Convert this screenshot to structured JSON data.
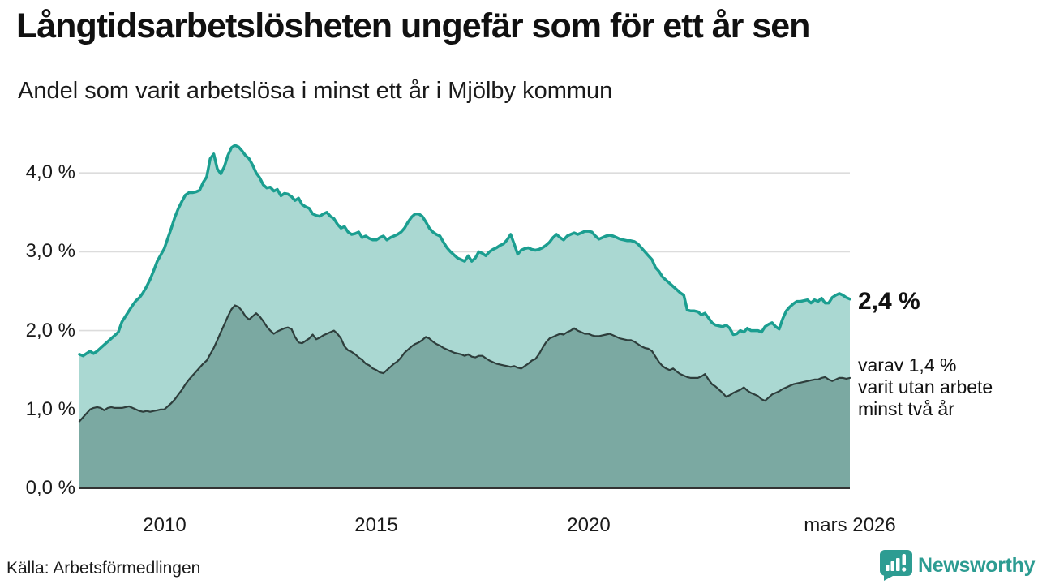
{
  "header": {
    "title": "Långtidsarbetslösheten ungefär som för ett år sen",
    "subtitle": "Andel som varit arbetslösa i minst ett år i Mjölby kommun"
  },
  "annotations": {
    "latest_value": "2,4 %",
    "detail_lines": [
      "varav 1,4 %",
      "varit utan arbete",
      "minst två år"
    ]
  },
  "source": "Källa: Arbetsförmedlingen",
  "logo": {
    "text": "Newsworthy"
  },
  "colors": {
    "line_one_year": "#1b9e90",
    "fill_one_year": "#aad8d2",
    "line_two_years": "#2e3e3c",
    "fill_two_years": "#7ba9a2",
    "gridline": "#dcdcdc",
    "baseline": "#333333",
    "logo_teal": "#2d9c92",
    "text": "#111111"
  },
  "chart_data": {
    "type": "area",
    "frequency": "monthly",
    "x_start": "2008-01",
    "x_end": "2026-03",
    "title": "Långtidsarbetslösheten ungefär som för ett år sen",
    "subtitle": "Andel som varit arbetslösa i minst ett år i Mjölby kommun",
    "ylim": [
      0,
      4.5
    ],
    "grid": "horizontal",
    "y_axis": {
      "values": [
        0,
        1,
        2,
        3,
        4
      ],
      "labels": [
        "0,0 %",
        "1,0 %",
        "2,0 %",
        "3,0 %",
        "4,0 %"
      ]
    },
    "x_axis": {
      "labels": [
        "2010",
        "2015",
        "2020",
        "mars 2026"
      ],
      "month_indices": [
        24,
        84,
        144,
        218
      ]
    },
    "series": [
      {
        "name": "Arbetslösa minst ett år",
        "end_label": "2,4 %",
        "values": [
          1.7,
          1.68,
          1.71,
          1.74,
          1.71,
          1.74,
          1.78,
          1.82,
          1.86,
          1.9,
          1.94,
          1.98,
          2.11,
          2.18,
          2.25,
          2.32,
          2.38,
          2.42,
          2.48,
          2.56,
          2.65,
          2.76,
          2.88,
          2.96,
          3.04,
          3.17,
          3.3,
          3.44,
          3.55,
          3.64,
          3.72,
          3.75,
          3.75,
          3.76,
          3.78,
          3.88,
          3.95,
          4.18,
          4.24,
          4.05,
          3.99,
          4.08,
          4.22,
          4.32,
          4.35,
          4.33,
          4.28,
          4.22,
          4.18,
          4.1,
          4.0,
          3.94,
          3.85,
          3.81,
          3.82,
          3.77,
          3.79,
          3.71,
          3.74,
          3.73,
          3.7,
          3.65,
          3.68,
          3.6,
          3.57,
          3.55,
          3.48,
          3.46,
          3.45,
          3.48,
          3.5,
          3.45,
          3.42,
          3.35,
          3.3,
          3.32,
          3.25,
          3.22,
          3.23,
          3.25,
          3.18,
          3.2,
          3.17,
          3.15,
          3.15,
          3.18,
          3.2,
          3.15,
          3.18,
          3.2,
          3.22,
          3.25,
          3.3,
          3.38,
          3.44,
          3.48,
          3.48,
          3.45,
          3.38,
          3.3,
          3.25,
          3.22,
          3.2,
          3.12,
          3.05,
          3.0,
          2.96,
          2.92,
          2.9,
          2.88,
          2.95,
          2.88,
          2.92,
          3.0,
          2.98,
          2.95,
          3.0,
          3.03,
          3.05,
          3.08,
          3.1,
          3.15,
          3.22,
          3.1,
          2.97,
          3.02,
          3.04,
          3.05,
          3.03,
          3.02,
          3.03,
          3.05,
          3.08,
          3.12,
          3.18,
          3.22,
          3.18,
          3.15,
          3.2,
          3.22,
          3.24,
          3.22,
          3.24,
          3.26,
          3.26,
          3.25,
          3.2,
          3.16,
          3.18,
          3.2,
          3.21,
          3.2,
          3.18,
          3.16,
          3.15,
          3.14,
          3.14,
          3.13,
          3.1,
          3.05,
          3.0,
          2.95,
          2.9,
          2.8,
          2.75,
          2.68,
          2.64,
          2.6,
          2.56,
          2.52,
          2.48,
          2.45,
          2.26,
          2.25,
          2.25,
          2.24,
          2.2,
          2.22,
          2.16,
          2.1,
          2.07,
          2.06,
          2.05,
          2.07,
          2.03,
          1.95,
          1.96,
          2.0,
          1.98,
          2.03,
          2.0,
          2.0,
          2.0,
          1.98,
          2.05,
          2.08,
          2.1,
          2.05,
          2.02,
          2.15,
          2.25,
          2.3,
          2.34,
          2.37,
          2.37,
          2.38,
          2.39,
          2.35,
          2.39,
          2.37,
          2.41,
          2.35,
          2.35,
          2.42,
          2.45,
          2.47,
          2.45,
          2.42,
          2.4
        ]
      },
      {
        "name": "Arbetslösa minst två år",
        "end_label": "1,4 %",
        "values": [
          0.85,
          0.9,
          0.95,
          1.0,
          1.02,
          1.03,
          1.02,
          0.99,
          1.02,
          1.03,
          1.02,
          1.02,
          1.02,
          1.03,
          1.04,
          1.02,
          1.0,
          0.98,
          0.97,
          0.98,
          0.97,
          0.98,
          0.99,
          1.0,
          1.0,
          1.04,
          1.08,
          1.13,
          1.19,
          1.25,
          1.32,
          1.38,
          1.43,
          1.48,
          1.53,
          1.58,
          1.62,
          1.7,
          1.78,
          1.88,
          1.98,
          2.08,
          2.18,
          2.27,
          2.32,
          2.3,
          2.25,
          2.18,
          2.14,
          2.18,
          2.22,
          2.18,
          2.12,
          2.05,
          2.0,
          1.96,
          1.99,
          2.01,
          2.03,
          2.04,
          2.02,
          1.92,
          1.85,
          1.84,
          1.87,
          1.9,
          1.95,
          1.89,
          1.91,
          1.94,
          1.96,
          1.98,
          2.0,
          1.96,
          1.9,
          1.8,
          1.75,
          1.73,
          1.7,
          1.66,
          1.63,
          1.58,
          1.56,
          1.52,
          1.5,
          1.47,
          1.46,
          1.5,
          1.54,
          1.58,
          1.61,
          1.66,
          1.72,
          1.76,
          1.8,
          1.83,
          1.85,
          1.88,
          1.92,
          1.9,
          1.86,
          1.83,
          1.81,
          1.78,
          1.76,
          1.74,
          1.72,
          1.71,
          1.7,
          1.68,
          1.7,
          1.67,
          1.66,
          1.68,
          1.68,
          1.65,
          1.62,
          1.6,
          1.58,
          1.57,
          1.56,
          1.55,
          1.54,
          1.55,
          1.53,
          1.52,
          1.55,
          1.58,
          1.62,
          1.64,
          1.7,
          1.78,
          1.85,
          1.9,
          1.92,
          1.94,
          1.96,
          1.95,
          1.98,
          2.0,
          2.03,
          2.0,
          1.98,
          1.96,
          1.96,
          1.94,
          1.93,
          1.93,
          1.94,
          1.95,
          1.96,
          1.94,
          1.92,
          1.9,
          1.89,
          1.88,
          1.88,
          1.86,
          1.83,
          1.8,
          1.78,
          1.77,
          1.74,
          1.67,
          1.6,
          1.55,
          1.52,
          1.5,
          1.52,
          1.48,
          1.45,
          1.43,
          1.41,
          1.4,
          1.4,
          1.4,
          1.42,
          1.45,
          1.38,
          1.32,
          1.29,
          1.25,
          1.21,
          1.16,
          1.18,
          1.21,
          1.23,
          1.25,
          1.28,
          1.24,
          1.21,
          1.19,
          1.17,
          1.13,
          1.11,
          1.15,
          1.19,
          1.21,
          1.23,
          1.26,
          1.28,
          1.3,
          1.32,
          1.33,
          1.34,
          1.35,
          1.36,
          1.37,
          1.38,
          1.38,
          1.4,
          1.41,
          1.38,
          1.36,
          1.38,
          1.4,
          1.4,
          1.39,
          1.4
        ]
      }
    ]
  }
}
